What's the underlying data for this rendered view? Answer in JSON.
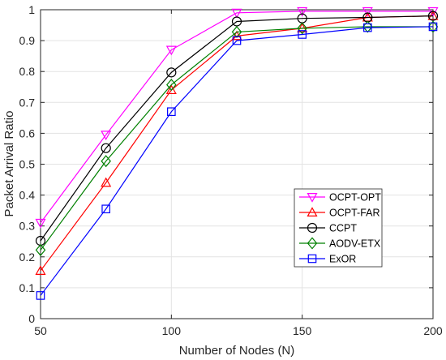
{
  "chart_data": {
    "type": "line",
    "xlabel": "Number of Nodes (N)",
    "ylabel": "Packet Arrival Ratio",
    "x": [
      50,
      75,
      100,
      125,
      150,
      175,
      200
    ],
    "xlim": [
      50,
      200
    ],
    "ylim": [
      0,
      1
    ],
    "xticks": [
      50,
      100,
      150,
      200
    ],
    "yticks": [
      0,
      0.1,
      0.2,
      0.3,
      0.4,
      0.5,
      0.6,
      0.7,
      0.8,
      0.9,
      1
    ],
    "grid": true,
    "legend_position": "bottom-right",
    "series": [
      {
        "name": "OCPT-OPT",
        "color": "#ff00ff",
        "marker": "triangle-down",
        "values": [
          0.31,
          0.595,
          0.87,
          0.99,
          0.995,
          0.995,
          0.995
        ]
      },
      {
        "name": "OCPT-FAR",
        "color": "#ff0000",
        "marker": "triangle-up",
        "values": [
          0.155,
          0.44,
          0.74,
          0.915,
          0.94,
          0.975,
          0.98
        ]
      },
      {
        "name": "CCPT",
        "color": "#000000",
        "marker": "circle",
        "values": [
          0.252,
          0.552,
          0.797,
          0.962,
          0.972,
          0.975,
          0.98
        ]
      },
      {
        "name": "AODV-ETX",
        "color": "#008000",
        "marker": "diamond",
        "values": [
          0.222,
          0.51,
          0.757,
          0.928,
          0.94,
          0.945,
          0.945
        ]
      },
      {
        "name": "ExOR",
        "color": "#0000ff",
        "marker": "square",
        "values": [
          0.075,
          0.355,
          0.67,
          0.9,
          0.92,
          0.942,
          0.945
        ]
      }
    ]
  }
}
